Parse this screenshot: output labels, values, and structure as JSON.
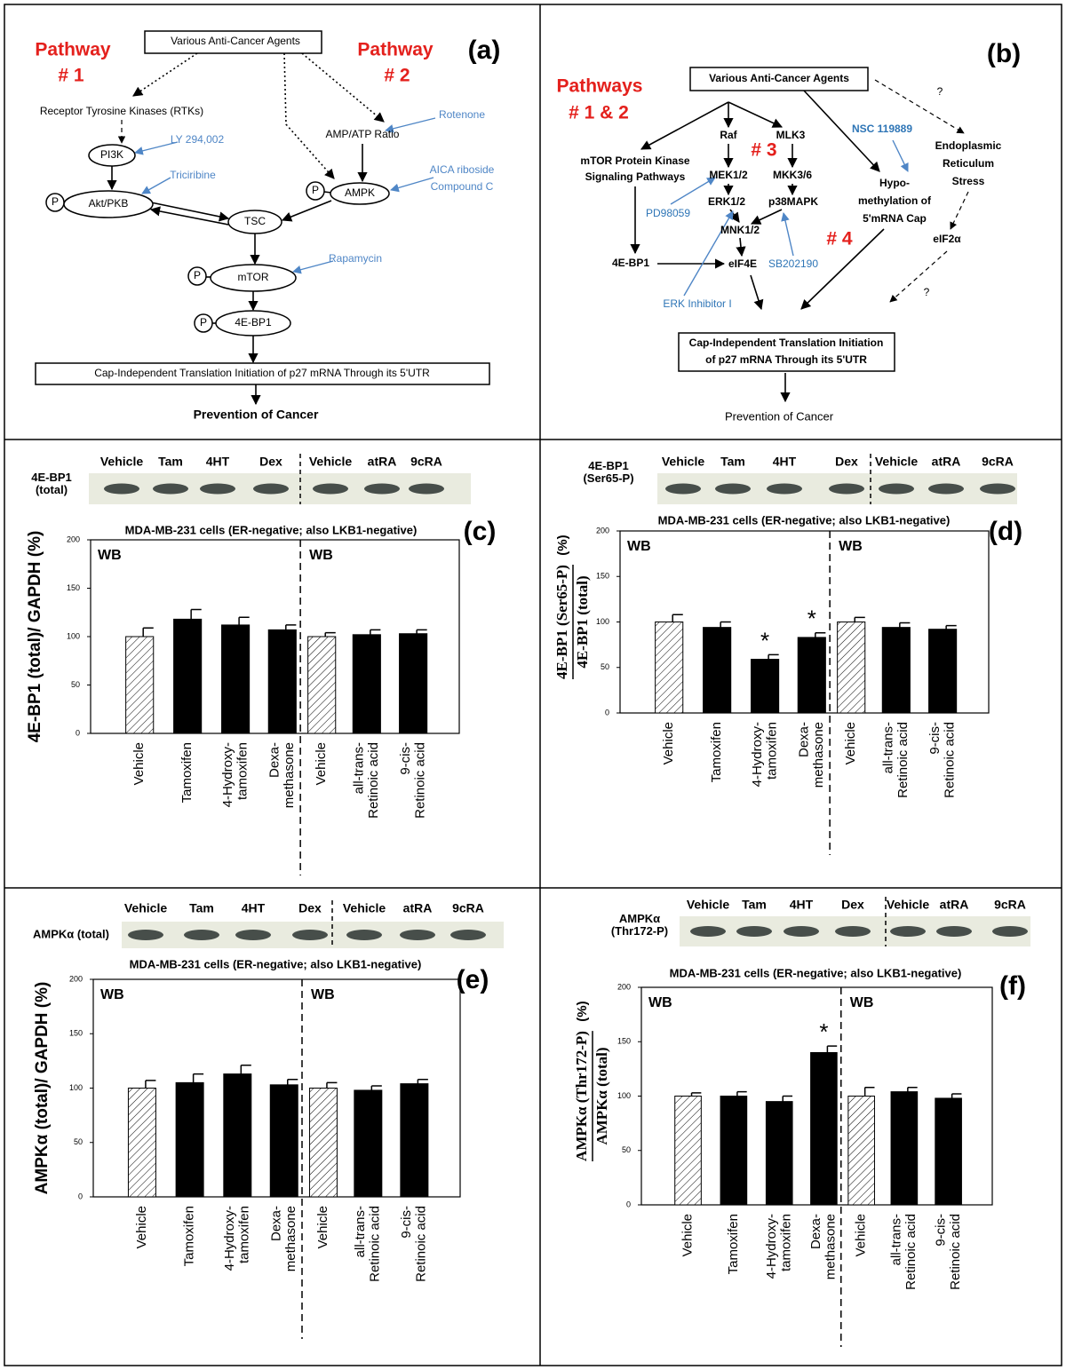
{
  "panel_a": {
    "label": "(a)",
    "phospho_label": "P",
    "texts": [
      "Pathway",
      "# 1",
      "Pathway",
      "# 2",
      "Various Anti-Cancer Agents",
      "Receptor Tyrosine Kinases (RTKs)",
      "LY 294,002",
      "PI3K",
      "Triciribine",
      "Akt/PKB",
      "AMP/ATP Ratio",
      "Rotenone",
      "AICA riboside",
      "Compound C",
      "AMPK",
      "TSC",
      "Rapamycin",
      "mTOR",
      "4E-BP1",
      "Cap-Independent Translation Initiation of p27 mRNA Through its 5'UTR",
      "Prevention of Cancer"
    ]
  },
  "panel_b": {
    "label": "(b)",
    "texts": [
      "Pathways",
      "# 1 & 2",
      "Various Anti-Cancer Agents",
      "?",
      "Raf",
      "MLK3",
      "# 3",
      "mTOR Protein Kinase",
      "Signaling Pathways",
      "MEK1/2",
      "MKK3/6",
      "NSC 119889",
      "Endoplasmic",
      "Reticulum",
      "Stress",
      "PD98059",
      "ERK1/2",
      "p38MAPK",
      "Hypo-",
      "methylation of",
      "5'mRNA Cap",
      "# 4",
      "MNK1/2",
      "4E-BP1",
      "eIF4E",
      "SB202190",
      "eIF2α",
      "ERK Inhibitor I",
      "?",
      "Cap-Independent Translation Initiation",
      "of p27 mRNA Through its 5'UTR",
      "Prevention of Cancer"
    ]
  },
  "chart_data": [
    {
      "type": "bar",
      "panel_label": "(c)",
      "blot": {
        "label": "4E-BP1\n(total)",
        "lanes": [
          "Vehicle",
          "Tam",
          "4HT",
          "Dex",
          "Vehicle",
          "atRA",
          "9cRA"
        ]
      },
      "title": "MDA-MB-231 cells (ER-negative; also LKB1-negative)",
      "ylabel": "4E-BP1 (total)/ GAPDH (%)",
      "annotations": [
        "WB",
        "WB"
      ],
      "categories": [
        "Vehicle",
        "Tamoxifen",
        "4-Hydroxy-\ntamoxifen",
        "Dexa-\nmethasone",
        "Vehicle",
        "all-trans-\nRetinoic acid",
        "9-cis-\nRetinoic acid"
      ],
      "values": [
        100,
        118,
        112,
        107,
        100,
        102,
        103
      ],
      "errors": [
        9,
        10,
        8,
        5,
        4,
        5,
        4
      ],
      "hatched": [
        true,
        false,
        false,
        false,
        true,
        false,
        false
      ],
      "significant": [
        false,
        false,
        false,
        false,
        false,
        false,
        false
      ],
      "significance_label": "*",
      "color": "#000000",
      "ylim": [
        0,
        200
      ],
      "yticks": [
        0,
        50,
        100,
        150,
        200
      ]
    },
    {
      "type": "bar",
      "panel_label": "(d)",
      "blot": {
        "label": "4E-BP1\n(Ser65-P)",
        "lanes": [
          "Vehicle",
          "Tam",
          "4HT",
          "Dex",
          "Vehicle",
          "atRA",
          "9cRA"
        ]
      },
      "title": "MDA-MB-231 cells (ER-negative; also LKB1-negative)",
      "ylabel": {
        "numerator": "4E-BP1 (Ser65-P)",
        "denominator": "4E-BP1 (total)",
        "unit": "(%)"
      },
      "annotations": [
        "WB",
        "WB"
      ],
      "categories": [
        "Vehicle",
        "Tamoxifen",
        "4-Hydroxy-\ntamoxifen",
        "Dexa-\nmethasone",
        "Vehicle",
        "all-trans-\nRetinoic acid",
        "9-cis-\nRetinoic acid"
      ],
      "values": [
        100,
        94,
        59,
        83,
        100,
        94,
        92
      ],
      "errors": [
        8,
        6,
        5,
        5,
        5,
        5,
        4
      ],
      "hatched": [
        true,
        false,
        false,
        false,
        true,
        false,
        false
      ],
      "significant": [
        false,
        false,
        true,
        true,
        false,
        false,
        false
      ],
      "significance_label": "*",
      "color": "#000000",
      "ylim": [
        0,
        200
      ],
      "yticks": [
        0,
        50,
        100,
        150,
        200
      ]
    },
    {
      "type": "bar",
      "panel_label": "(e)",
      "blot": {
        "label": "AMPKα (total)",
        "lanes": [
          "Vehicle",
          "Tam",
          "4HT",
          "Dex",
          "Vehicle",
          "atRA",
          "9cRA"
        ]
      },
      "title": "MDA-MB-231 cells (ER-negative; also LKB1-negative)",
      "ylabel": "AMPKα (total)/ GAPDH (%)",
      "annotations": [
        "WB",
        "WB"
      ],
      "categories": [
        "Vehicle",
        "Tamoxifen",
        "4-Hydroxy-\ntamoxifen",
        "Dexa-\nmethasone",
        "Vehicle",
        "all-trans-\nRetinoic acid",
        "9-cis-\nRetinoic acid"
      ],
      "values": [
        100,
        105,
        113,
        103,
        100,
        98,
        104
      ],
      "errors": [
        7,
        8,
        8,
        5,
        5,
        4,
        4
      ],
      "hatched": [
        true,
        false,
        false,
        false,
        true,
        false,
        false
      ],
      "significant": [
        false,
        false,
        false,
        false,
        false,
        false,
        false
      ],
      "significance_label": "*",
      "color": "#000000",
      "ylim": [
        0,
        200
      ],
      "yticks": [
        0,
        50,
        100,
        150,
        200
      ]
    },
    {
      "type": "bar",
      "panel_label": "(f)",
      "blot": {
        "label": "AMPKα\n(Thr172-P)",
        "lanes": [
          "Vehicle",
          "Tam",
          "4HT",
          "Dex",
          "Vehicle",
          "atRA",
          "9cRA"
        ]
      },
      "title": "MDA-MB-231 cells (ER-negative; also LKB1-negative)",
      "ylabel": {
        "numerator": "AMPKα (Thr172-P)",
        "denominator": "AMPKα (total)",
        "unit": "(%)"
      },
      "annotations": [
        "WB",
        "WB"
      ],
      "categories": [
        "Vehicle",
        "Tamoxifen",
        "4-Hydroxy-\ntamoxifen",
        "Dexa-\nmethasone",
        "Vehicle",
        "all-trans-\nRetinoic acid",
        "9-cis-\nRetinoic acid"
      ],
      "values": [
        100,
        100,
        95,
        140,
        100,
        104,
        98
      ],
      "errors": [
        3,
        4,
        5,
        6,
        8,
        4,
        4
      ],
      "hatched": [
        true,
        false,
        false,
        false,
        true,
        false,
        false
      ],
      "significant": [
        false,
        false,
        false,
        true,
        false,
        false,
        false
      ],
      "significance_label": "*",
      "color": "#000000",
      "ylim": [
        0,
        200
      ],
      "yticks": [
        0,
        50,
        100,
        150,
        200
      ]
    }
  ]
}
